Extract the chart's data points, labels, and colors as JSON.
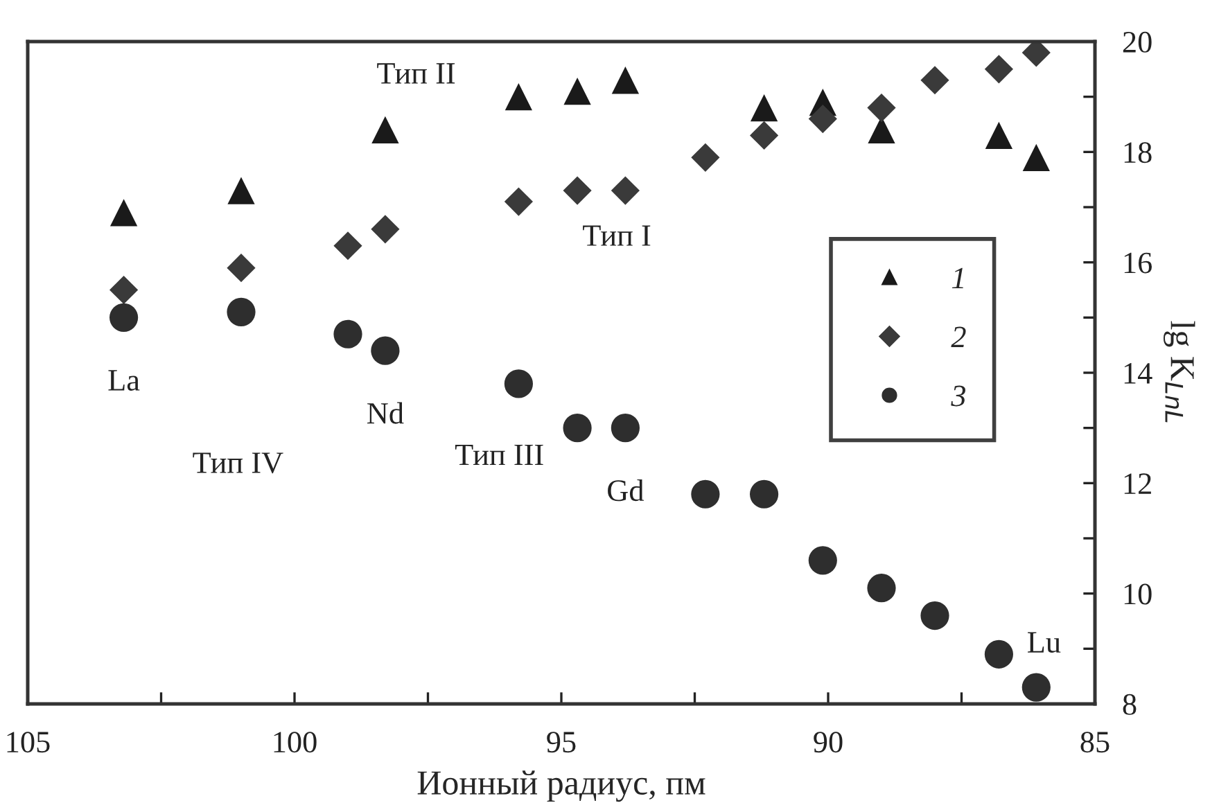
{
  "chart_data": {
    "type": "scatter",
    "xlabel": "Ионный радиус, пм",
    "ylabel": "lg K$_{LnL}$",
    "xlim": [
      105,
      85
    ],
    "xticks": [
      105,
      {
        "value": 102.5,
        "label": null
      },
      100,
      {
        "value": 97.5,
        "label": null
      },
      95,
      {
        "value": 92.5,
        "label": null
      },
      90,
      {
        "value": 87.5,
        "label": null
      },
      85
    ],
    "ylim": [
      8,
      20
    ],
    "yticks": [
      8,
      {
        "value": 9,
        "label": null
      },
      10,
      {
        "value": 11,
        "label": null
      },
      12,
      {
        "value": 13,
        "label": null
      },
      14,
      {
        "value": 15,
        "label": null
      },
      16,
      {
        "value": 17,
        "label": null
      },
      18,
      {
        "value": 19,
        "label": null
      },
      20
    ],
    "grid": false,
    "legend": "right",
    "series": [
      {
        "name": "1",
        "color": "#1a1a1a",
        "marker": "triangle",
        "x": [
          103.2,
          101.0,
          98.3,
          95.8,
          94.7,
          93.8,
          91.2,
          90.1,
          89.0,
          86.8,
          86.1
        ],
        "values": [
          16.9,
          17.3,
          18.4,
          19.0,
          19.1,
          19.3,
          18.8,
          18.9,
          18.4,
          18.3,
          17.9
        ]
      },
      {
        "name": "2",
        "color": "#3a3a3a",
        "marker": "diamond",
        "x": [
          103.2,
          101.0,
          99.0,
          98.3,
          95.8,
          94.7,
          93.8,
          92.3,
          91.2,
          90.1,
          89.0,
          88.0,
          86.8,
          86.1
        ],
        "values": [
          15.5,
          15.9,
          16.3,
          16.6,
          17.1,
          17.3,
          17.3,
          17.9,
          18.3,
          18.6,
          18.8,
          19.3,
          19.5,
          19.8
        ]
      },
      {
        "name": "3",
        "color": "#2e2e2e",
        "marker": "circle",
        "x": [
          103.2,
          101.0,
          99.0,
          98.3,
          95.8,
          94.7,
          93.8,
          92.3,
          91.2,
          90.1,
          89.0,
          88.0,
          86.8,
          86.1
        ],
        "values": [
          15.0,
          15.1,
          14.7,
          14.4,
          13.8,
          13.0,
          13.0,
          11.8,
          11.8,
          10.6,
          10.1,
          9.6,
          8.9,
          8.3
        ]
      }
    ],
    "annotations": [
      "Тип II",
      "Тип I",
      "Тип III",
      "Тип IV",
      {
        "text": "La",
        "x": 103.2,
        "y": 15.0
      },
      {
        "text": "Nd",
        "x": 98.3,
        "y": 14.4
      },
      {
        "text": "Gd",
        "x": 93.8,
        "y": 13.0
      },
      {
        "text": "Lu",
        "x": 86.1,
        "y": 8.3
      }
    ]
  }
}
